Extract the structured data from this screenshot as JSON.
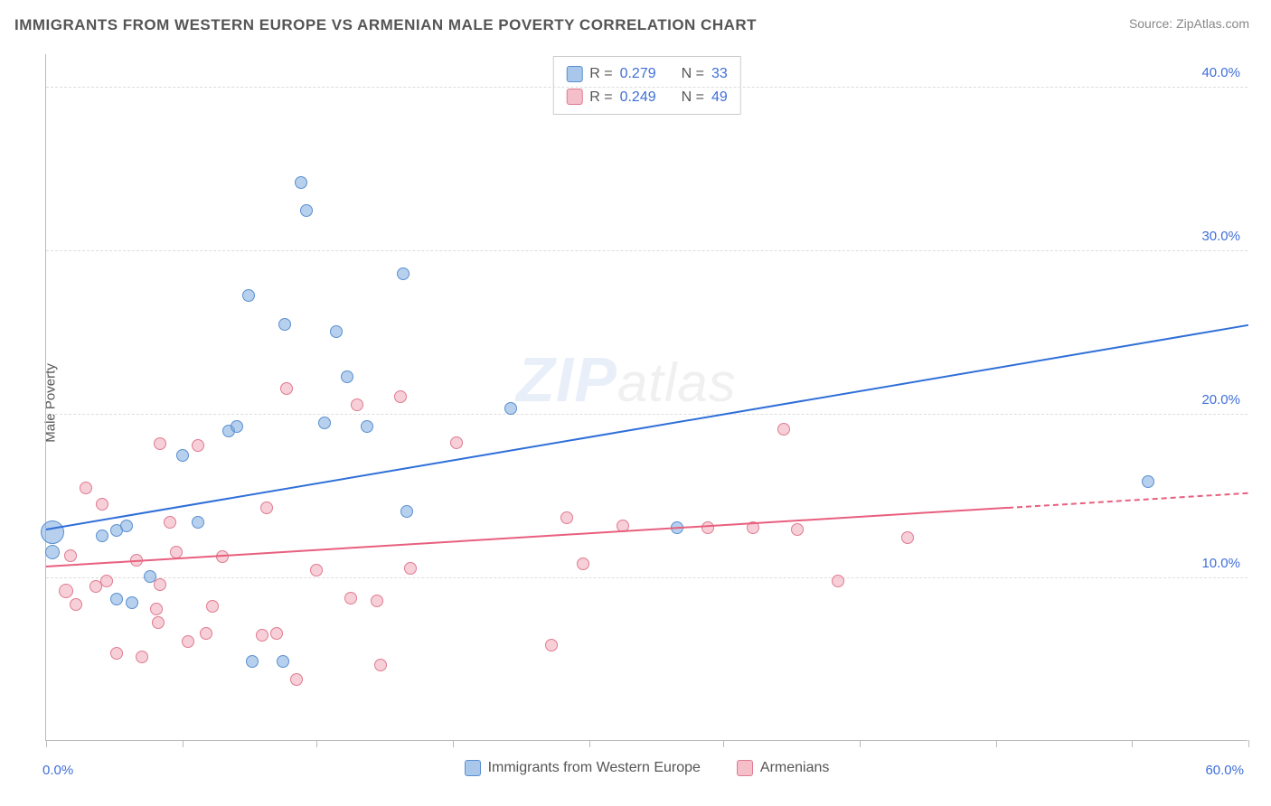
{
  "title": "IMMIGRANTS FROM WESTERN EUROPE VS ARMENIAN MALE POVERTY CORRELATION CHART",
  "source": "Source: ZipAtlas.com",
  "ylabel": "Male Poverty",
  "watermark_zip": "ZIP",
  "watermark_atlas": "atlas",
  "chart": {
    "type": "scatter",
    "xlim": [
      0,
      60
    ],
    "ylim": [
      0,
      42
    ],
    "x_format": "percent",
    "y_format": "percent",
    "background_color": "#ffffff",
    "grid_color": "#dddddd",
    "axis_color": "#bbbbbb",
    "tick_label_color": "#3f6fd8",
    "label_color": "#555555",
    "title_color": "#555555",
    "title_fontsize": 17,
    "label_fontsize": 15,
    "y_gridlines": [
      10,
      20,
      30,
      40
    ],
    "y_tick_labels": [
      "10.0%",
      "20.0%",
      "30.0%",
      "40.0%"
    ],
    "x_ticks": [
      0,
      6.8,
      13.5,
      20.3,
      27.1,
      33.8,
      40.6,
      47.4,
      54.2,
      60
    ],
    "x_first_label": "0.0%",
    "x_last_label": "60.0%"
  },
  "legend_top": {
    "rows": [
      {
        "swatch_fill": "#a8c7eb",
        "swatch_border": "#5a8fd0",
        "r_label": "R = ",
        "r_value": "0.279",
        "n_label": "N = ",
        "n_value": "33"
      },
      {
        "swatch_fill": "#f5bfca",
        "swatch_border": "#e07a8e",
        "r_label": "R = ",
        "r_value": "0.249",
        "n_label": "N = ",
        "n_value": "49"
      }
    ]
  },
  "legend_bottom": {
    "items": [
      {
        "swatch_fill": "#a8c7eb",
        "swatch_border": "#5a8fd0",
        "label": "Immigrants from Western Europe"
      },
      {
        "swatch_fill": "#f5bfca",
        "swatch_border": "#e07a8e",
        "label": "Armenians"
      }
    ]
  },
  "series_a": {
    "name": "Immigrants from Western Europe",
    "point_fill": "rgba(122,170,222,0.55)",
    "point_border": "#5a8fd0",
    "trend_color": "#2f6fd8",
    "trend": {
      "x0": 0,
      "y0": 13.0,
      "x1": 60,
      "y1": 25.5
    },
    "points": [
      {
        "x": 0.3,
        "y": 12.7,
        "r": 13
      },
      {
        "x": 0.3,
        "y": 11.5,
        "r": 8
      },
      {
        "x": 2.8,
        "y": 12.5,
        "r": 7
      },
      {
        "x": 3.5,
        "y": 12.8,
        "r": 7
      },
      {
        "x": 3.5,
        "y": 8.6,
        "r": 7
      },
      {
        "x": 4.0,
        "y": 13.1,
        "r": 7
      },
      {
        "x": 4.3,
        "y": 8.4,
        "r": 7
      },
      {
        "x": 5.2,
        "y": 10.0,
        "r": 7
      },
      {
        "x": 6.8,
        "y": 17.4,
        "r": 7
      },
      {
        "x": 7.6,
        "y": 13.3,
        "r": 7
      },
      {
        "x": 9.1,
        "y": 18.9,
        "r": 7
      },
      {
        "x": 9.5,
        "y": 19.2,
        "r": 7
      },
      {
        "x": 10.1,
        "y": 27.2,
        "r": 7
      },
      {
        "x": 10.3,
        "y": 4.8,
        "r": 7
      },
      {
        "x": 11.8,
        "y": 4.8,
        "r": 7
      },
      {
        "x": 11.9,
        "y": 25.4,
        "r": 7
      },
      {
        "x": 12.7,
        "y": 34.1,
        "r": 7
      },
      {
        "x": 13.0,
        "y": 32.4,
        "r": 7
      },
      {
        "x": 13.9,
        "y": 19.4,
        "r": 7
      },
      {
        "x": 14.5,
        "y": 25.0,
        "r": 7
      },
      {
        "x": 15.0,
        "y": 22.2,
        "r": 7
      },
      {
        "x": 16.0,
        "y": 19.2,
        "r": 7
      },
      {
        "x": 17.8,
        "y": 28.5,
        "r": 7
      },
      {
        "x": 18.0,
        "y": 14.0,
        "r": 7
      },
      {
        "x": 23.2,
        "y": 20.3,
        "r": 7
      },
      {
        "x": 31.5,
        "y": 13.0,
        "r": 7
      },
      {
        "x": 55.0,
        "y": 15.8,
        "r": 7
      }
    ]
  },
  "series_b": {
    "name": "Armenians",
    "point_fill": "rgba(240,160,178,0.5)",
    "point_border": "#e07a8e",
    "trend_color": "#e85f7e",
    "trend_solid": {
      "x0": 0,
      "y0": 10.7,
      "x1": 48,
      "y1": 14.3
    },
    "trend_dashed": {
      "x0": 48,
      "y0": 14.3,
      "x1": 60,
      "y1": 15.2
    },
    "points": [
      {
        "x": 1.0,
        "y": 9.1,
        "r": 8
      },
      {
        "x": 1.2,
        "y": 11.3,
        "r": 7
      },
      {
        "x": 1.5,
        "y": 8.3,
        "r": 7
      },
      {
        "x": 2.0,
        "y": 15.4,
        "r": 7
      },
      {
        "x": 2.5,
        "y": 9.4,
        "r": 7
      },
      {
        "x": 2.8,
        "y": 14.4,
        "r": 7
      },
      {
        "x": 3.0,
        "y": 9.7,
        "r": 7
      },
      {
        "x": 3.5,
        "y": 5.3,
        "r": 7
      },
      {
        "x": 4.5,
        "y": 11.0,
        "r": 7
      },
      {
        "x": 4.8,
        "y": 5.1,
        "r": 7
      },
      {
        "x": 5.5,
        "y": 8.0,
        "r": 7
      },
      {
        "x": 5.6,
        "y": 7.2,
        "r": 7
      },
      {
        "x": 5.7,
        "y": 18.1,
        "r": 7
      },
      {
        "x": 5.7,
        "y": 9.5,
        "r": 7
      },
      {
        "x": 6.2,
        "y": 13.3,
        "r": 7
      },
      {
        "x": 6.5,
        "y": 11.5,
        "r": 7
      },
      {
        "x": 7.1,
        "y": 6.0,
        "r": 7
      },
      {
        "x": 7.6,
        "y": 18.0,
        "r": 7
      },
      {
        "x": 8.0,
        "y": 6.5,
        "r": 7
      },
      {
        "x": 8.3,
        "y": 8.2,
        "r": 7
      },
      {
        "x": 8.8,
        "y": 11.2,
        "r": 7
      },
      {
        "x": 10.8,
        "y": 6.4,
        "r": 7
      },
      {
        "x": 11.0,
        "y": 14.2,
        "r": 7
      },
      {
        "x": 11.5,
        "y": 6.5,
        "r": 7
      },
      {
        "x": 12.0,
        "y": 21.5,
        "r": 7
      },
      {
        "x": 12.5,
        "y": 3.7,
        "r": 7
      },
      {
        "x": 13.5,
        "y": 10.4,
        "r": 7
      },
      {
        "x": 15.2,
        "y": 8.7,
        "r": 7
      },
      {
        "x": 15.5,
        "y": 20.5,
        "r": 7
      },
      {
        "x": 16.5,
        "y": 8.5,
        "r": 7
      },
      {
        "x": 16.7,
        "y": 4.6,
        "r": 7
      },
      {
        "x": 17.7,
        "y": 21.0,
        "r": 7
      },
      {
        "x": 18.2,
        "y": 10.5,
        "r": 7
      },
      {
        "x": 20.5,
        "y": 18.2,
        "r": 7
      },
      {
        "x": 25.2,
        "y": 5.8,
        "r": 7
      },
      {
        "x": 26.0,
        "y": 13.6,
        "r": 7
      },
      {
        "x": 26.8,
        "y": 10.8,
        "r": 7
      },
      {
        "x": 28.8,
        "y": 13.1,
        "r": 7
      },
      {
        "x": 33.0,
        "y": 13.0,
        "r": 7
      },
      {
        "x": 35.3,
        "y": 13.0,
        "r": 7
      },
      {
        "x": 36.8,
        "y": 19.0,
        "r": 7
      },
      {
        "x": 37.5,
        "y": 12.9,
        "r": 7
      },
      {
        "x": 39.5,
        "y": 9.7,
        "r": 7
      },
      {
        "x": 43.0,
        "y": 12.4,
        "r": 7
      }
    ]
  }
}
